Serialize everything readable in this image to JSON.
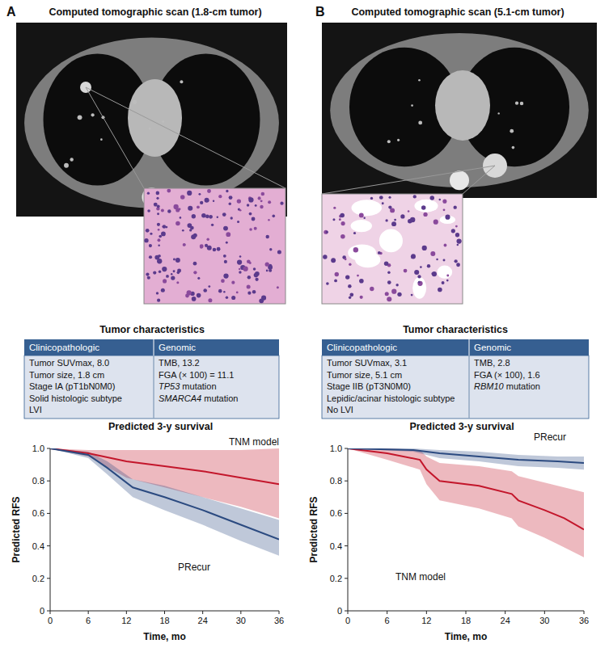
{
  "panels": [
    {
      "label": "A",
      "image_title": "Computed tomographic scan (1.8-cm tumor)",
      "table_title": "Tumor characteristics",
      "table": {
        "columns": [
          "Clinicopathologic",
          "Genomic"
        ],
        "clinicopathologic": [
          "Tumor SUVmax, 8.0",
          "Tumor size, 1.8 cm",
          "Stage IA (pT1bN0M0)",
          "Solid histologic subtype",
          "LVI"
        ],
        "genomic": [
          "TMB, 13.2",
          "FGA (× 100) = 11.1",
          "TP53 mutation",
          "SMARCA4 mutation"
        ]
      }
    },
    {
      "label": "B",
      "image_title": "Computed tomographic scan (5.1-cm tumor)",
      "table_title": "Tumor characteristics",
      "table": {
        "columns": [
          "Clinicopathologic",
          "Genomic"
        ],
        "clinicopathologic": [
          "Tumor SUVmax, 3.1",
          "Tumor size, 5.1 cm",
          "Stage IIB (pT3N0M0)",
          "Lepidic/acinar histologic subtype",
          "No LVI"
        ],
        "genomic": [
          "TMB, 2.8",
          "FGA (× 100), 1.6",
          "RBM10 mutation"
        ]
      }
    }
  ],
  "chart_data": [
    {
      "type": "line",
      "title": "Predicted 3-y survival",
      "x_label": "Time, mo",
      "y_label": "Predicted RFS",
      "xlim": [
        0,
        36
      ],
      "ylim": [
        0,
        1
      ],
      "xticks": [
        0,
        6,
        12,
        18,
        24,
        30,
        36
      ],
      "yticks": [
        0,
        0.2,
        0.4,
        0.6,
        0.8,
        {
          "value": 1,
          "label": "1.0"
        }
      ],
      "series": [
        {
          "name": "TNM model",
          "color": "#c3162b",
          "x": [
            0,
            6,
            12,
            18,
            24,
            30,
            36
          ],
          "values": [
            1.0,
            0.97,
            0.92,
            0.89,
            0.86,
            0.82,
            0.78
          ],
          "lower": [
            1.0,
            0.95,
            0.82,
            0.76,
            0.7,
            0.64,
            0.57
          ],
          "upper": [
            1.0,
            0.99,
            0.99,
            0.99,
            0.99,
            0.99,
            1.0
          ]
        },
        {
          "name": "PRecur",
          "color": "#2b4a80",
          "x": [
            0,
            6,
            9,
            13,
            18,
            24,
            30,
            36
          ],
          "values": [
            1.0,
            0.96,
            0.88,
            0.76,
            0.7,
            0.62,
            0.53,
            0.44
          ],
          "lower": [
            1.0,
            0.94,
            0.84,
            0.7,
            0.62,
            0.53,
            0.43,
            0.34
          ],
          "upper": [
            1.0,
            0.98,
            0.92,
            0.81,
            0.77,
            0.7,
            0.63,
            0.56
          ]
        }
      ]
    },
    {
      "type": "line",
      "title": "Predicted 3-y survival",
      "x_label": "Time, mo",
      "y_label": "Predicted RFS",
      "xlim": [
        0,
        36
      ],
      "ylim": [
        0,
        1
      ],
      "xticks": [
        0,
        6,
        12,
        18,
        24,
        30,
        36
      ],
      "yticks": [
        0,
        0.2,
        0.4,
        0.6,
        0.8,
        {
          "value": 1,
          "label": "1.0"
        }
      ],
      "series": [
        {
          "name": "TNM model",
          "color": "#c3162b",
          "x": [
            0,
            6,
            11,
            12,
            14,
            20,
            25,
            26,
            30,
            33,
            36
          ],
          "values": [
            1.0,
            0.97,
            0.93,
            0.87,
            0.8,
            0.77,
            0.72,
            0.68,
            0.62,
            0.57,
            0.5
          ],
          "lower": [
            1.0,
            0.93,
            0.87,
            0.78,
            0.68,
            0.63,
            0.57,
            0.52,
            0.45,
            0.39,
            0.33
          ],
          "upper": [
            1.0,
            1.0,
            0.99,
            0.95,
            0.91,
            0.89,
            0.86,
            0.83,
            0.79,
            0.76,
            0.73
          ]
        },
        {
          "name": "PRecur",
          "color": "#2b4a80",
          "x": [
            0,
            10,
            14,
            20,
            26,
            32,
            36
          ],
          "values": [
            1.0,
            0.99,
            0.97,
            0.95,
            0.93,
            0.92,
            0.91
          ],
          "lower": [
            1.0,
            0.98,
            0.94,
            0.92,
            0.89,
            0.88,
            0.87
          ],
          "upper": [
            1.0,
            1.0,
            0.99,
            0.98,
            0.96,
            0.95,
            0.95
          ]
        }
      ]
    }
  ]
}
